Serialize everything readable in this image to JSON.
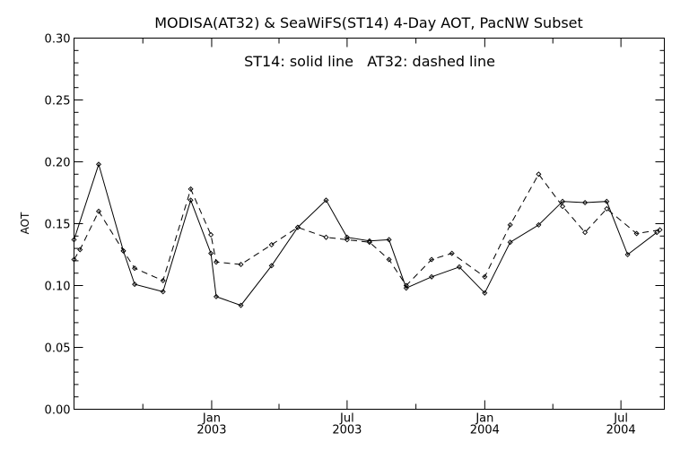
{
  "chart_data": {
    "type": "line",
    "title": "MODISA(AT32) & SeaWiFS(ST14) 4-Day AOT, PacNW Subset",
    "annotation": "ST14: solid line   AT32: dashed line",
    "xlabel": "",
    "ylabel": "AOT",
    "ylim": [
      0.0,
      0.3
    ],
    "yticks": [
      "0.00",
      "0.05",
      "0.10",
      "0.15",
      "0.20",
      "0.25",
      "0.30"
    ],
    "xlim": [
      "2002-07-01",
      "2004-08-28"
    ],
    "xticks": [
      {
        "month": "Jan",
        "year": "2003",
        "date": "2003-01-01"
      },
      {
        "month": "Jul",
        "year": "2003",
        "date": "2003-07-01"
      },
      {
        "month": "Jan",
        "year": "2004",
        "date": "2004-01-01"
      },
      {
        "month": "Jul",
        "year": "2004",
        "date": "2004-07-01"
      }
    ],
    "minor_ticks": [
      "2002-10-01",
      "2003-04-01",
      "2003-10-01",
      "2004-04-01"
    ],
    "grid": false,
    "series": [
      {
        "name": "ST14",
        "style": "solid",
        "color": "#000000",
        "points": [
          [
            "2002-07-01",
            0.137
          ],
          [
            "2002-08-03",
            0.198
          ],
          [
            "2002-09-05",
            0.128
          ],
          [
            "2002-09-20",
            0.101
          ],
          [
            "2002-10-28",
            0.095
          ],
          [
            "2002-12-04",
            0.169
          ],
          [
            "2002-12-31",
            0.126
          ],
          [
            "2003-01-07",
            0.091
          ],
          [
            "2003-02-09",
            0.084
          ],
          [
            "2003-03-22",
            0.116
          ],
          [
            "2003-04-26",
            0.147
          ],
          [
            "2003-06-03",
            0.169
          ],
          [
            "2003-07-01",
            0.139
          ],
          [
            "2003-07-31",
            0.136
          ],
          [
            "2003-08-26",
            0.137
          ],
          [
            "2003-09-18",
            0.098
          ],
          [
            "2003-10-22",
            0.107
          ],
          [
            "2003-11-28",
            0.115
          ],
          [
            "2004-01-01",
            0.094
          ],
          [
            "2004-02-04",
            0.135
          ],
          [
            "2004-03-13",
            0.149
          ],
          [
            "2004-04-14",
            0.168
          ],
          [
            "2004-05-14",
            0.167
          ],
          [
            "2004-06-12",
            0.168
          ],
          [
            "2004-07-10",
            0.125
          ],
          [
            "2004-08-18",
            0.143
          ]
        ]
      },
      {
        "name": "AT32",
        "style": "dashed",
        "color": "#000000",
        "points": [
          [
            "2002-07-01",
            0.121
          ],
          [
            "2002-07-09",
            0.129
          ],
          [
            "2002-08-03",
            0.16
          ],
          [
            "2002-09-05",
            0.128
          ],
          [
            "2002-09-20",
            0.114
          ],
          [
            "2002-10-28",
            0.104
          ],
          [
            "2002-12-04",
            0.178
          ],
          [
            "2002-12-31",
            0.141
          ],
          [
            "2003-01-07",
            0.119
          ],
          [
            "2003-02-09",
            0.117
          ],
          [
            "2003-03-22",
            0.133
          ],
          [
            "2003-04-26",
            0.147
          ],
          [
            "2003-06-03",
            0.139
          ],
          [
            "2003-07-01",
            0.137
          ],
          [
            "2003-07-31",
            0.135
          ],
          [
            "2003-08-26",
            0.121
          ],
          [
            "2003-09-18",
            0.1
          ],
          [
            "2003-10-22",
            0.121
          ],
          [
            "2003-11-18",
            0.126
          ],
          [
            "2004-01-01",
            0.107
          ],
          [
            "2004-02-04",
            0.149
          ],
          [
            "2004-03-13",
            0.19
          ],
          [
            "2004-04-14",
            0.164
          ],
          [
            "2004-05-14",
            0.143
          ],
          [
            "2004-06-12",
            0.162
          ],
          [
            "2004-07-22",
            0.142
          ],
          [
            "2004-08-22",
            0.145
          ]
        ]
      }
    ]
  }
}
